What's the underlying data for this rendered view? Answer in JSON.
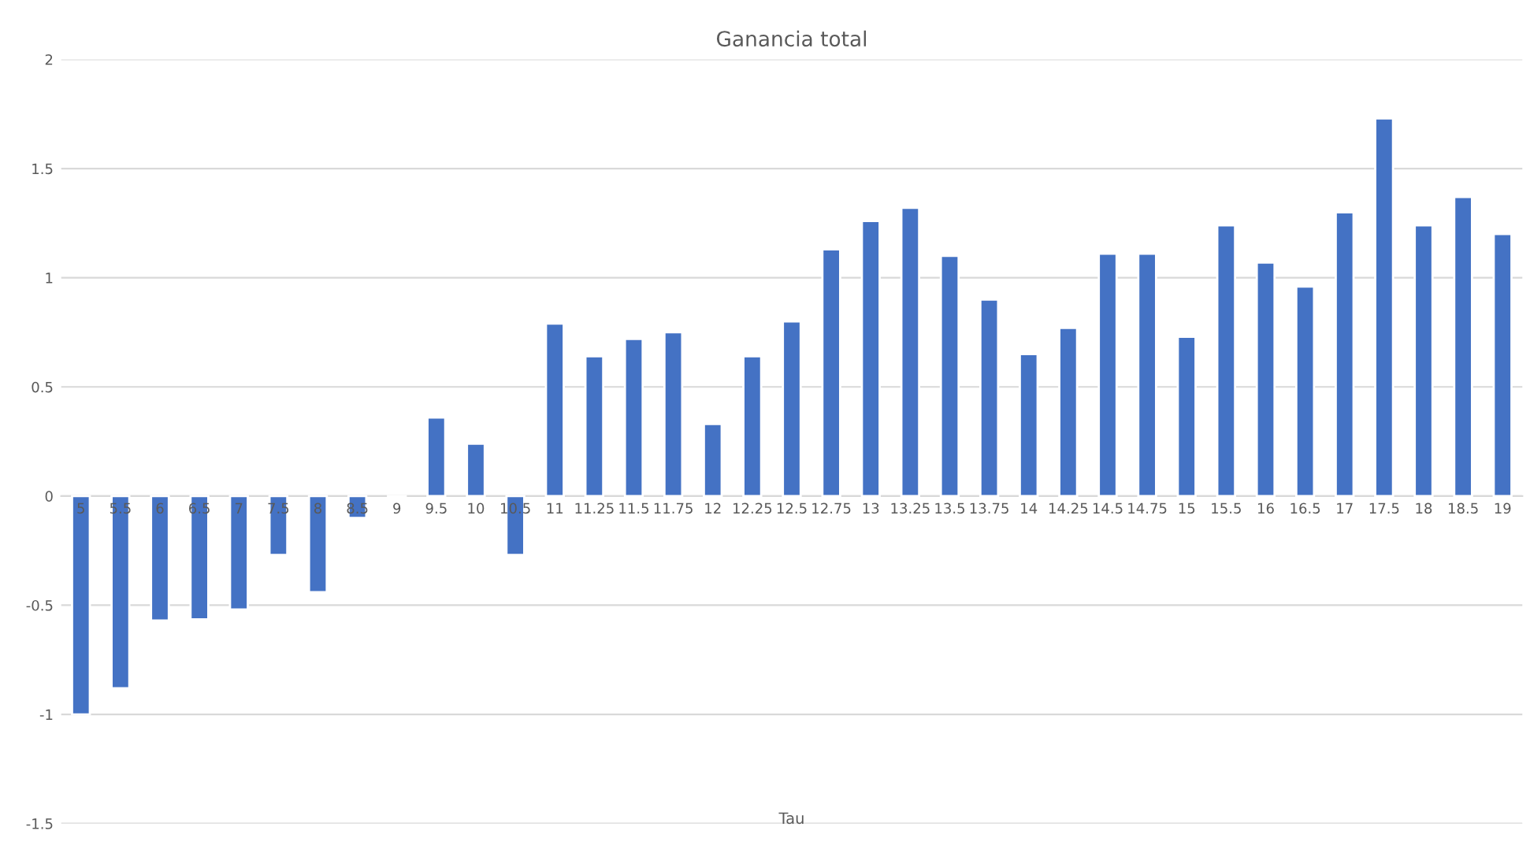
{
  "chart_data": {
    "type": "bar",
    "title": "Ganancia total",
    "xlabel": "Tau",
    "categories": [
      "5",
      "5.5",
      "6",
      "6.5",
      "7",
      "7.5",
      "8",
      "8.5",
      "9",
      "9.5",
      "10",
      "10.5",
      "11",
      "11.25",
      "11.5",
      "11.75",
      "12",
      "12.25",
      "12.5",
      "12.75",
      "13",
      "13.25",
      "13.5",
      "13.75",
      "14",
      "14.25",
      "14.5",
      "14.75",
      "15",
      "15.5",
      "16",
      "16.5",
      "17",
      "17.5",
      "18",
      "18.5",
      "19"
    ],
    "values": [
      -1.0,
      -0.88,
      -0.57,
      -0.565,
      -0.52,
      -0.27,
      -0.44,
      -0.1,
      -0.01,
      0.36,
      0.24,
      -0.27,
      0.79,
      0.64,
      0.72,
      0.75,
      0.33,
      0.64,
      0.8,
      1.13,
      1.26,
      1.32,
      1.1,
      0.9,
      0.65,
      0.77,
      1.11,
      1.11,
      0.73,
      1.24,
      1.07,
      0.96,
      1.3,
      1.73,
      1.24,
      1.37,
      1.2
    ],
    "color": "#4472c4",
    "ylim": [
      -1.5,
      2
    ],
    "yticks": [
      -1.5,
      -1,
      -0.5,
      0,
      0.5,
      1,
      1.5,
      2
    ],
    "grid": "y"
  }
}
